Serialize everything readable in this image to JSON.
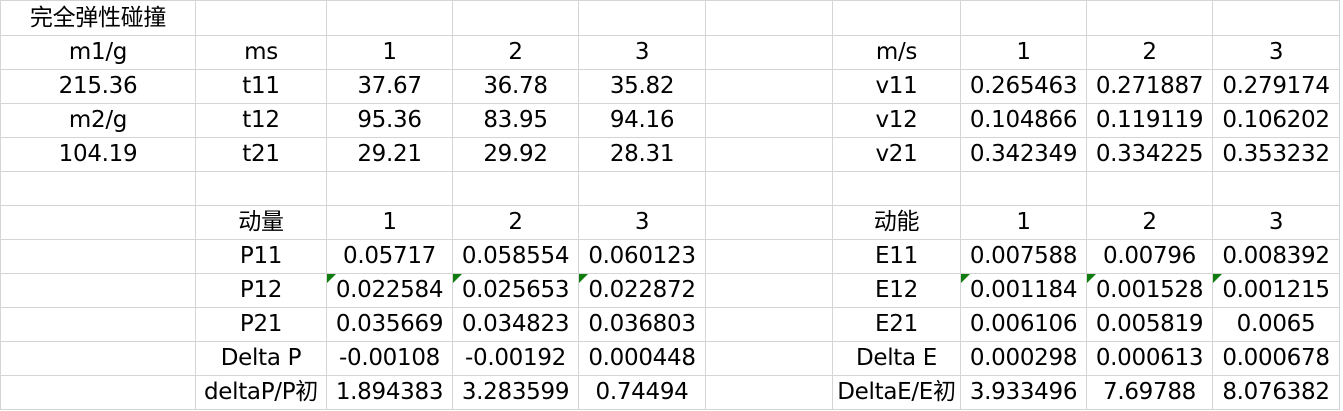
{
  "title": "完全弹性碰撞",
  "left": {
    "m1_label": "m1/g",
    "m1_value": "215.36",
    "m2_label": "m2/g",
    "m2_value": "104.19"
  },
  "times": {
    "unit": "ms",
    "cols": [
      "1",
      "2",
      "3"
    ],
    "rows": [
      {
        "label": "t11",
        "v": [
          "37.67",
          "36.78",
          "35.82"
        ]
      },
      {
        "label": "t12",
        "v": [
          "95.36",
          "83.95",
          "94.16"
        ]
      },
      {
        "label": "t21",
        "v": [
          "29.21",
          "29.92",
          "28.31"
        ]
      }
    ]
  },
  "velocity": {
    "unit": "m/s",
    "cols": [
      "1",
      "2",
      "3"
    ],
    "rows": [
      {
        "label": "v11",
        "v": [
          "0.265463",
          "0.271887",
          "0.279174"
        ]
      },
      {
        "label": "v12",
        "v": [
          "0.104866",
          "0.119119",
          "0.106202"
        ]
      },
      {
        "label": "v21",
        "v": [
          "0.342349",
          "0.334225",
          "0.353232"
        ]
      }
    ]
  },
  "momentum": {
    "header": "动量",
    "cols": [
      "1",
      "2",
      "3"
    ],
    "rows": [
      {
        "label": "P11",
        "v": [
          "0.05717",
          "0.058554",
          "0.060123"
        ]
      },
      {
        "label": "P12",
        "v": [
          "0.022584",
          "0.025653",
          "0.022872"
        ]
      },
      {
        "label": "P21",
        "v": [
          "0.035669",
          "0.034823",
          "0.036803"
        ]
      },
      {
        "label": "Delta P",
        "v": [
          "-0.00108",
          "-0.00192",
          "0.000448"
        ]
      },
      {
        "label": "deltaP/P初",
        "v": [
          "1.894383",
          "3.283599",
          "0.74494"
        ]
      }
    ]
  },
  "energy": {
    "header": "动能",
    "cols": [
      "1",
      "2",
      "3"
    ],
    "rows": [
      {
        "label": "E11",
        "v": [
          "0.007588",
          "0.00796",
          "0.008392"
        ]
      },
      {
        "label": "E12",
        "v": [
          "0.001184",
          "0.001528",
          "0.001215"
        ]
      },
      {
        "label": "E21",
        "v": [
          "0.006106",
          "0.005819",
          "0.0065"
        ]
      },
      {
        "label": "Delta E",
        "v": [
          "0.000298",
          "0.000613",
          "0.000678"
        ]
      },
      {
        "label": "DeltaE/E初",
        "v": [
          "3.933496",
          "7.69788",
          "8.076382"
        ]
      }
    ]
  },
  "colors": {
    "gridline": "#d4d4d4",
    "error_flag": "#107c10"
  }
}
